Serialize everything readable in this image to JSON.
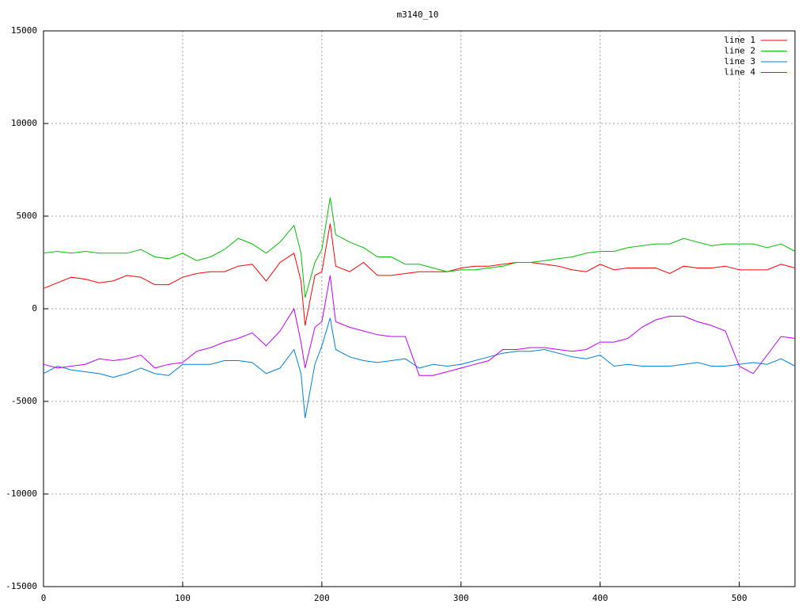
{
  "chart_data": {
    "type": "line",
    "title": "m3140_10",
    "x": [
      0,
      10,
      20,
      30,
      40,
      50,
      60,
      70,
      80,
      90,
      100,
      110,
      120,
      130,
      140,
      150,
      160,
      170,
      180,
      185,
      188,
      195,
      200,
      206,
      210,
      220,
      230,
      240,
      250,
      260,
      270,
      280,
      290,
      300,
      310,
      320,
      330,
      340,
      350,
      360,
      370,
      380,
      390,
      400,
      410,
      420,
      430,
      440,
      450,
      460,
      470,
      480,
      490,
      500,
      510,
      520,
      530,
      540
    ],
    "series": [
      {
        "name": "line 1",
        "color": "#ff0000",
        "values": [
          1100,
          1400,
          1700,
          1600,
          1400,
          1500,
          1800,
          1700,
          1300,
          1300,
          1700,
          1900,
          2000,
          2000,
          2300,
          2400,
          1500,
          2500,
          3000,
          1500,
          -900,
          1800,
          2000,
          4600,
          2300,
          2000,
          2500,
          1800,
          1800,
          1900,
          2000,
          2000,
          2000,
          2200,
          2300,
          2300,
          2400,
          2500,
          2500,
          2400,
          2300,
          2100,
          2000,
          2400,
          2100,
          2200,
          2200,
          2200,
          1900,
          2300,
          2200,
          2200,
          2300,
          2100,
          2100,
          2100,
          2400,
          2200
        ]
      },
      {
        "name": "line 2",
        "color": "#00c000",
        "values": [
          3000,
          3100,
          3000,
          3100,
          3000,
          3000,
          3000,
          3200,
          2800,
          2700,
          3000,
          2600,
          2800,
          3200,
          3800,
          3500,
          3000,
          3600,
          4500,
          3000,
          600,
          2500,
          3200,
          6000,
          4000,
          3600,
          3300,
          2800,
          2800,
          2400,
          2400,
          2200,
          2000,
          2100,
          2100,
          2200,
          2300,
          2500,
          2500,
          2600,
          2700,
          2800,
          3000,
          3100,
          3100,
          3300,
          3400,
          3500,
          3500,
          3800,
          3600,
          3400,
          3500,
          3500,
          3500,
          3300,
          3500,
          3100
        ]
      },
      {
        "name": "line 3",
        "color": "#0080e0",
        "values": [
          -3500,
          -3100,
          -3300,
          -3400,
          -3500,
          -3700,
          -3500,
          -3200,
          -3500,
          -3600,
          -3000,
          -3000,
          -3000,
          -2800,
          -2800,
          -2900,
          -3500,
          -3200,
          -2200,
          -3500,
          -5900,
          -3000,
          -2000,
          -500,
          -2200,
          -2600,
          -2800,
          -2900,
          -2800,
          -2700,
          -3200,
          -3000,
          -3100,
          -3000,
          -2800,
          -2600,
          -2400,
          -2300,
          -2300,
          -2200,
          -2400,
          -2600,
          -2700,
          -2500,
          -3100,
          -3000,
          -3100,
          -3100,
          -3100,
          -3000,
          -2900,
          -3100,
          -3100,
          -3000,
          -2900,
          -3000,
          -2700,
          -3100
        ]
      },
      {
        "name": "line 4",
        "color": "#c000ff",
        "values": [
          -3000,
          -3200,
          -3100,
          -3000,
          -2700,
          -2800,
          -2700,
          -2500,
          -3200,
          -3000,
          -2900,
          -2300,
          -2100,
          -1800,
          -1600,
          -1300,
          -2000,
          -1200,
          0,
          -1800,
          -3200,
          -1000,
          -700,
          1800,
          -700,
          -1000,
          -1200,
          -1400,
          -1500,
          -1500,
          -3600,
          -3600,
          -3400,
          -3200,
          -3000,
          -2800,
          -2200,
          -2200,
          -2100,
          -2100,
          -2200,
          -2300,
          -2200,
          -1800,
          -1800,
          -1600,
          -1000,
          -600,
          -400,
          -400,
          -700,
          -900,
          -1200,
          -3100,
          -3500,
          -2500,
          -1500,
          -1600
        ]
      }
    ],
    "xlim": [
      0,
      540
    ],
    "xticks": [
      0,
      100,
      200,
      300,
      400,
      500
    ],
    "ylim": [
      -15000,
      15000
    ],
    "yticks": [
      -15000,
      -10000,
      -5000,
      0,
      5000,
      10000,
      15000
    ],
    "grid": true,
    "legend": "top-right"
  }
}
